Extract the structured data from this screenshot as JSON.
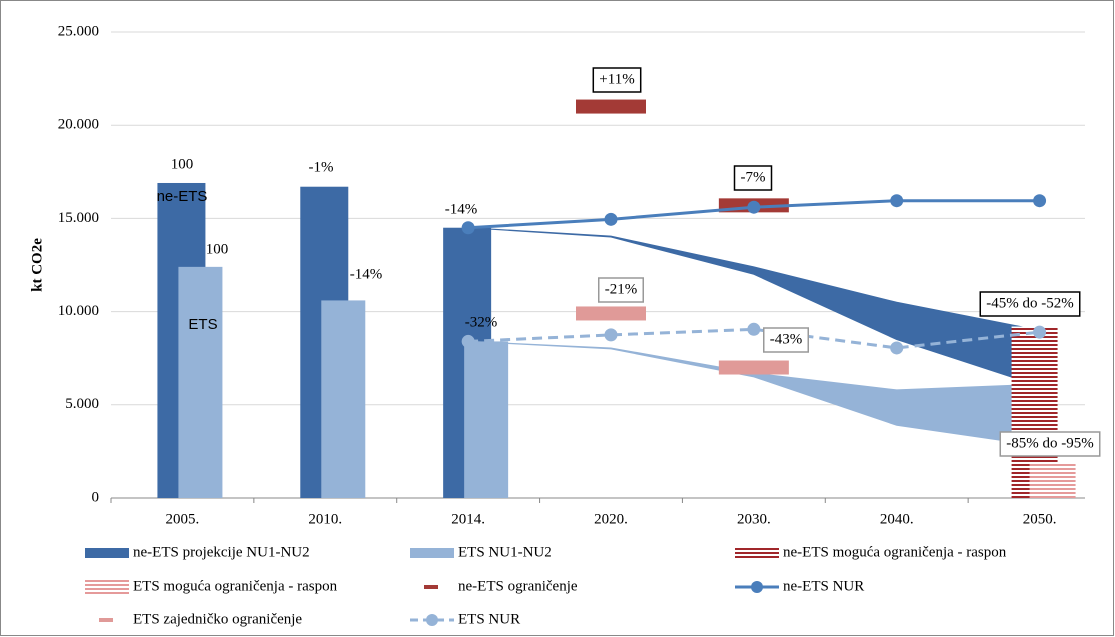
{
  "chart_data": {
    "type": "combo",
    "y_label": "kt CO2e",
    "categories": [
      "2005.",
      "2010.",
      "2014.",
      "2020.",
      "2030.",
      "2040.",
      "2050."
    ],
    "ylim": [
      0,
      25000
    ],
    "yticks": [
      0,
      {
        "value": 5000,
        "label": "5.000"
      },
      {
        "value": 10000,
        "label": "10.000"
      },
      {
        "value": 15000,
        "label": "15.000"
      },
      {
        "value": 20000,
        "label": "20.000"
      },
      {
        "value": 25000,
        "label": "25.000"
      }
    ],
    "grid": true,
    "bars": [
      {
        "name": "ne-ETS",
        "color": "#3d6aa5",
        "values": [
          16900,
          16700,
          14500,
          null,
          null,
          null,
          null
        ]
      },
      {
        "name": "ETS",
        "color": "#95b3d7",
        "values": [
          12400,
          10600,
          8400,
          null,
          null,
          null,
          null
        ]
      }
    ],
    "series": [
      {
        "name": "ne-ETS projekcije NU1-NU2",
        "type": "band",
        "color": "#3d6aa5",
        "high": [
          null,
          null,
          14500,
          14050,
          12400,
          10500,
          9000
        ],
        "low": [
          null,
          null,
          14500,
          14000,
          12000,
          8500,
          6000
        ]
      },
      {
        "name": "ETS NU1-NU2",
        "type": "band",
        "color": "#95b3d7",
        "high": [
          null,
          null,
          8400,
          8050,
          6700,
          5800,
          6100
        ],
        "low": [
          null,
          null,
          8400,
          8000,
          6500,
          3900,
          2800
        ]
      },
      {
        "name": "ne-ETS moguća ograničenja - raspon",
        "type": "range",
        "color": "#a0262a",
        "values": [
          null,
          null,
          null,
          null,
          null,
          null,
          9200
        ]
      },
      {
        "name": "ETS moguća ograničenja - raspon",
        "type": "range",
        "color": "#e59a9a",
        "values": [
          null,
          null,
          null,
          null,
          null,
          null,
          1900
        ]
      },
      {
        "name": "ne-ETS ograničenje",
        "type": "marker",
        "color": "#a33a36",
        "values": [
          null,
          null,
          null,
          21000,
          15700,
          null,
          null
        ]
      },
      {
        "name": "ne-ETS NUR",
        "type": "line",
        "color": "#4a7ebb",
        "values": [
          null,
          null,
          14500,
          14950,
          15600,
          15950,
          15950
        ]
      },
      {
        "name": "ETS zajedničko ograničenje",
        "type": "marker",
        "color": "#e09a98",
        "values": [
          null,
          null,
          null,
          9900,
          7000,
          null,
          null
        ]
      },
      {
        "name": "ETS NUR",
        "type": "dashed",
        "color": "#95b3d7",
        "values": [
          null,
          null,
          8400,
          8750,
          9050,
          8050,
          8900
        ]
      }
    ],
    "annotations": [
      "100",
      "ne-ETS",
      "100",
      "ETS",
      "-1%",
      "-14%",
      "-14%",
      "-32%",
      "+11%",
      "-21%",
      "-7%",
      "-43%",
      "-45% do -52%",
      "-85% do -95%"
    ]
  }
}
